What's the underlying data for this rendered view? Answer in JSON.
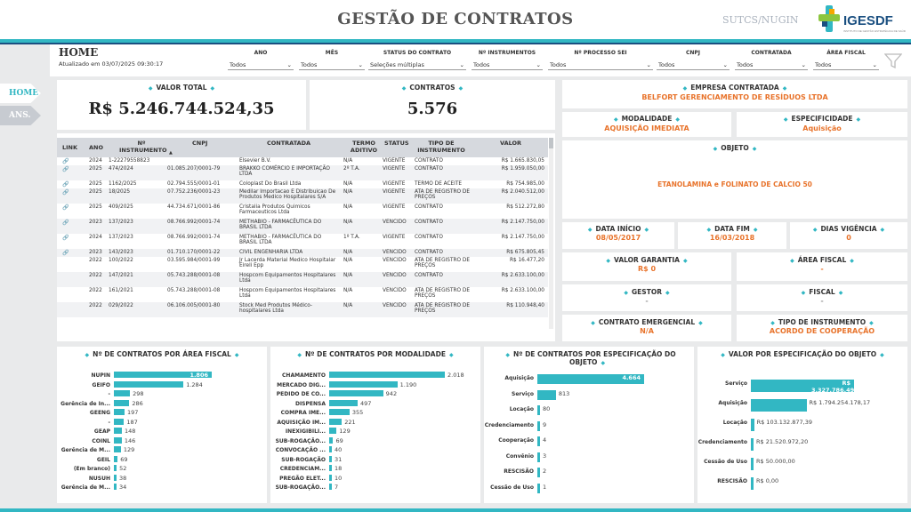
{
  "header": {
    "title": "GESTÃO DE CONTRATOS",
    "dept": "SUTCS/NUGIN",
    "logo": "IGESDF"
  },
  "page": {
    "home": "HOME",
    "updated": "Atualizado em 03/07/2025 09:30:17"
  },
  "nav": [
    {
      "label": "HOME"
    },
    {
      "label": "ANS."
    }
  ],
  "filters": [
    {
      "label": "ANO",
      "value": "Todos"
    },
    {
      "label": "MÊS",
      "value": "Todos"
    },
    {
      "label": "STATUS DO CONTRATO",
      "value": "Seleções múltiplas"
    },
    {
      "label": "Nº INSTRUMENTOS",
      "value": "Todos"
    },
    {
      "label": "Nº PROCESSO SEI",
      "value": "Todos"
    },
    {
      "label": "CNPJ",
      "value": "Todos"
    },
    {
      "label": "CONTRATADA",
      "value": "Todos"
    },
    {
      "label": "ÁREA FISCAL",
      "value": "Todos"
    }
  ],
  "kpi": {
    "total_label": "VALOR TOTAL",
    "total": "R$ 5.246.744.524,35",
    "contratos_label": "CONTRATOS",
    "contratos": "5.576"
  },
  "details": {
    "empresa_label": "EMPRESA CONTRATADA",
    "empresa": "BELFORT GERENCIAMENTO DE RESÍDUOS LTDA",
    "modalidade_label": "MODALIDADE",
    "modalidade": "AQUISIÇÃO IMEDIATA",
    "especificidade_label": "ESPECIFICIDADE",
    "especificidade": "Aquisição",
    "objeto_label": "OBJETO",
    "objeto": "ETANOLAMINA e FOLINATO DE CALCIO 50",
    "inicio_label": "DATA INÍCIO",
    "inicio": "08/05/2017",
    "fim_label": "DATA FIM",
    "fim": "16/03/2018",
    "dias_label": "DIAS VIGÊNCIA",
    "dias": "0",
    "garantia_label": "VALOR GARANTIA",
    "garantia": "R$ 0",
    "area_label": "ÁREA FISCAL",
    "area": "-",
    "gestor_label": "GESTOR",
    "gestor": "-",
    "fiscal_label": "FISCAL",
    "fiscal": "-",
    "emergencial_label": "CONTRATO EMERGENCIAL",
    "emergencial": "N/A",
    "tipo_label": "TIPO DE INSTRUMENTO",
    "tipo": "ACORDO DE COOPERAÇÃO"
  },
  "table": {
    "headers": [
      "LINK",
      "ANO",
      "Nº INSTRUMENTO",
      "CNPJ",
      "CONTRATADA",
      "TERMO ADITIVO",
      "STATUS",
      "TIPO DE INSTRUMENTO",
      "VALOR"
    ],
    "rows": [
      [
        "🔗",
        "2024",
        "1-22279558823",
        "",
        "Elsevier B.V.",
        "N/A",
        "VIGENTE",
        "CONTRATO",
        "R$ 1.665.830,05"
      ],
      [
        "🔗",
        "2025",
        "474/2024",
        "01.085.207/0001-79",
        "BRAKKO COMÉRCIO E IMPORTAÇÃO LTDA",
        "2º T.A.",
        "VIGENTE",
        "CONTRATO",
        "R$ 1.959.050,00"
      ],
      [
        "🔗",
        "2025",
        "1162/2025",
        "02.794.555/0001-01",
        "Coloplast Do Brasil Ltda",
        "N/A",
        "VIGENTE",
        "TERMO DE ACEITE",
        "R$ 754.985,00"
      ],
      [
        "🔗",
        "2025",
        "18/2025",
        "07.752.236/0001-23",
        "Medilar Importacao E Distribuicao De Produtos Medico Hospitalares S/A",
        "N/A",
        "VIGENTE",
        "ATA DE REGISTRO DE PREÇOS",
        "R$ 2.040.512,00"
      ],
      [
        "🔗",
        "2025",
        "409/2025",
        "44.734.671/0001-86",
        "Cristalia Produtos Quimicos Farmaceuticos Ltda",
        "N/A",
        "VIGENTE",
        "CONTRATO",
        "R$ 512.272,80"
      ],
      [
        "🔗",
        "2023",
        "137/2023",
        "08.766.992/0001-74",
        "METHABIO - FARMACÊUTICA DO BRASIL LTDA",
        "N/A",
        "VENCIDO",
        "CONTRATO",
        "R$ 2.147.750,00"
      ],
      [
        "🔗",
        "2024",
        "137/2023",
        "08.766.992/0001-74",
        "METHABIO - FARMACÊUTICA DO BRASIL LTDA",
        "1º T.A.",
        "VIGENTE",
        "CONTRATO",
        "R$ 2.147.750,00"
      ],
      [
        "🔗",
        "2023",
        "143/2023",
        "01.710.170/0001-22",
        "CIVIL ENGENHARIA LTDA",
        "N/A",
        "VENCIDO",
        "CONTRATO",
        "R$ 675.805,45"
      ],
      [
        "",
        "2022",
        "100/2022",
        "03.595.984/0001-99",
        "Jr Lacerda Material Medico Hospitalar Eireli Epp",
        "N/A",
        "VENCIDO",
        "ATA DE REGISTRO DE PREÇOS",
        "R$ 16.477,20"
      ],
      [
        "",
        "2022",
        "147/2021",
        "05.743.288/0001-08",
        "Hospcom Equipamentos Hospitalares Ltda",
        "N/A",
        "VENCIDO",
        "CONTRATO",
        "R$ 2.633.100,00"
      ],
      [
        "",
        "2022",
        "161/2021",
        "05.743.288/0001-08",
        "Hospcom Equipamentos Hospitalares Ltda",
        "N/A",
        "VENCIDO",
        "ATA DE REGISTRO DE PREÇOS",
        "R$ 2.633.100,00"
      ],
      [
        "",
        "2022",
        "029/2022",
        "06.106.005/0001-80",
        "Stock Med Produtos Médico-hospitalares Ltda",
        "N/A",
        "VENCIDO",
        "ATA DE REGISTRO DE PREÇOS",
        "R$ 110.948,40"
      ]
    ]
  },
  "chart_data": [
    {
      "type": "bar",
      "title": "Nº DE CONTRATOS POR ÁREA FISCAL",
      "categories": [
        "NUPIN",
        "GEIFO",
        "-",
        "Gerência de In...",
        "GEENG",
        "-",
        "GEAP",
        "COINL",
        "Gerência de M...",
        "GEIL",
        "(Em branco)",
        "NUSUH",
        "Gerência de M..."
      ],
      "values": [
        1806,
        1284,
        298,
        286,
        197,
        187,
        148,
        146,
        129,
        69,
        52,
        38,
        34
      ]
    },
    {
      "type": "bar",
      "title": "Nº DE CONTRATOS POR MODALIDADE",
      "categories": [
        "CHAMAMENTO",
        "MERCADO DIG...",
        "PEDIDO DE CO...",
        "DISPENSA",
        "COMPRA IME...",
        "AQUISIÇÃO IM...",
        "INEXIGIBILI...",
        "SUB-ROGAÇÃO...",
        "CONVOCAÇÃO ...",
        "SUB-ROGAÇÃO",
        "CREDENCIAM...",
        "PREGÃO ELET...",
        "SUB-ROGAÇÃO..."
      ],
      "values": [
        2018,
        1190,
        942,
        497,
        355,
        221,
        129,
        69,
        40,
        31,
        18,
        10,
        7
      ]
    },
    {
      "type": "bar",
      "title": "Nº DE CONTRATOS POR ESPECIFICAÇÃO DO OBJETO",
      "categories": [
        "Aquisição",
        "Serviço",
        "Locação",
        "Credenciamento",
        "Cooperação",
        "Convênio",
        "RESCISÃO",
        "Cessão de Uso"
      ],
      "values": [
        4664,
        813,
        80,
        9,
        4,
        3,
        2,
        1
      ]
    },
    {
      "type": "bar",
      "title": "VALOR POR ESPECIFICAÇÃO DO OBJETO",
      "categories": [
        "Serviço",
        "Aquisição",
        "Locação",
        "Credenciamento",
        "Cessão de Uso",
        "RESCISÃO"
      ],
      "values": [
        3327786496.59,
        1794254178.17,
        103132877.39,
        21520972.2,
        50000.0,
        0
      ],
      "labels": [
        "R$ 3.327.786.496,59",
        "R$ 1.794.254.178,17",
        "R$ 103.132.877,39",
        "R$ 21.520.972,20",
        "R$ 50.000,00",
        "R$ 0,00"
      ]
    }
  ]
}
